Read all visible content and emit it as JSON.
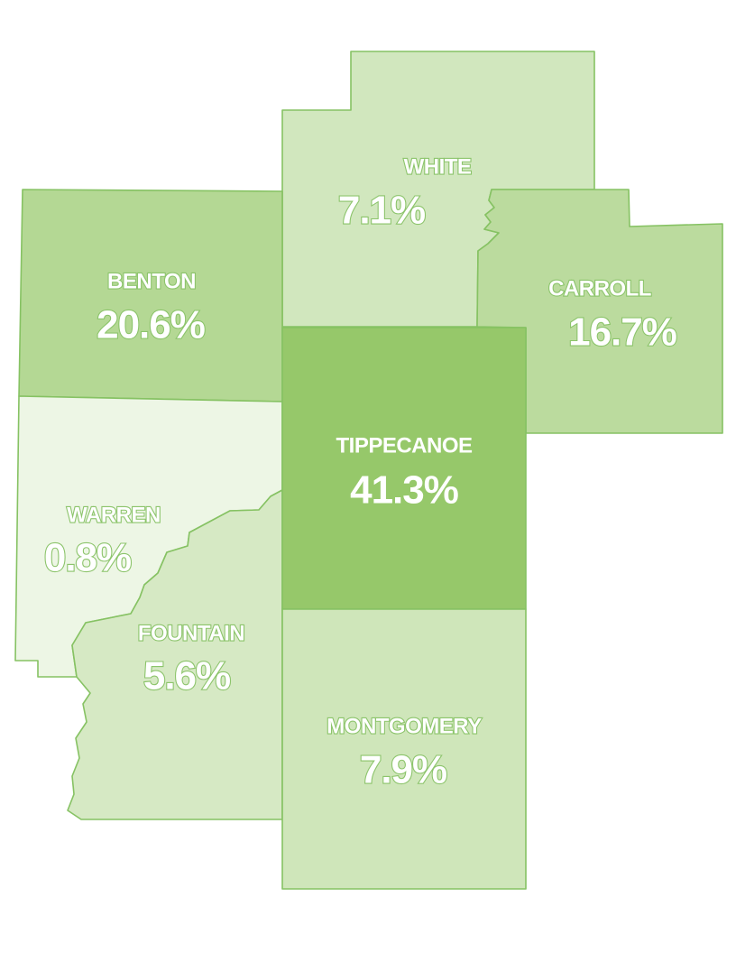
{
  "regions": [
    {
      "name": "WHITE",
      "value": 7.1,
      "value_label": "7.1%"
    },
    {
      "name": "CARROLL",
      "value": 16.7,
      "value_label": "16.7%"
    },
    {
      "name": "BENTON",
      "value": 20.6,
      "value_label": "20.6%"
    },
    {
      "name": "TIPPECANOE",
      "value": 41.3,
      "value_label": "41.3%"
    },
    {
      "name": "WARREN",
      "value": 0.8,
      "value_label": "0.8%"
    },
    {
      "name": "FOUNTAIN",
      "value": 5.6,
      "value_label": "5.6%"
    },
    {
      "name": "MONTGOMERY",
      "value": 7.9,
      "value_label": "7.9%"
    }
  ]
}
